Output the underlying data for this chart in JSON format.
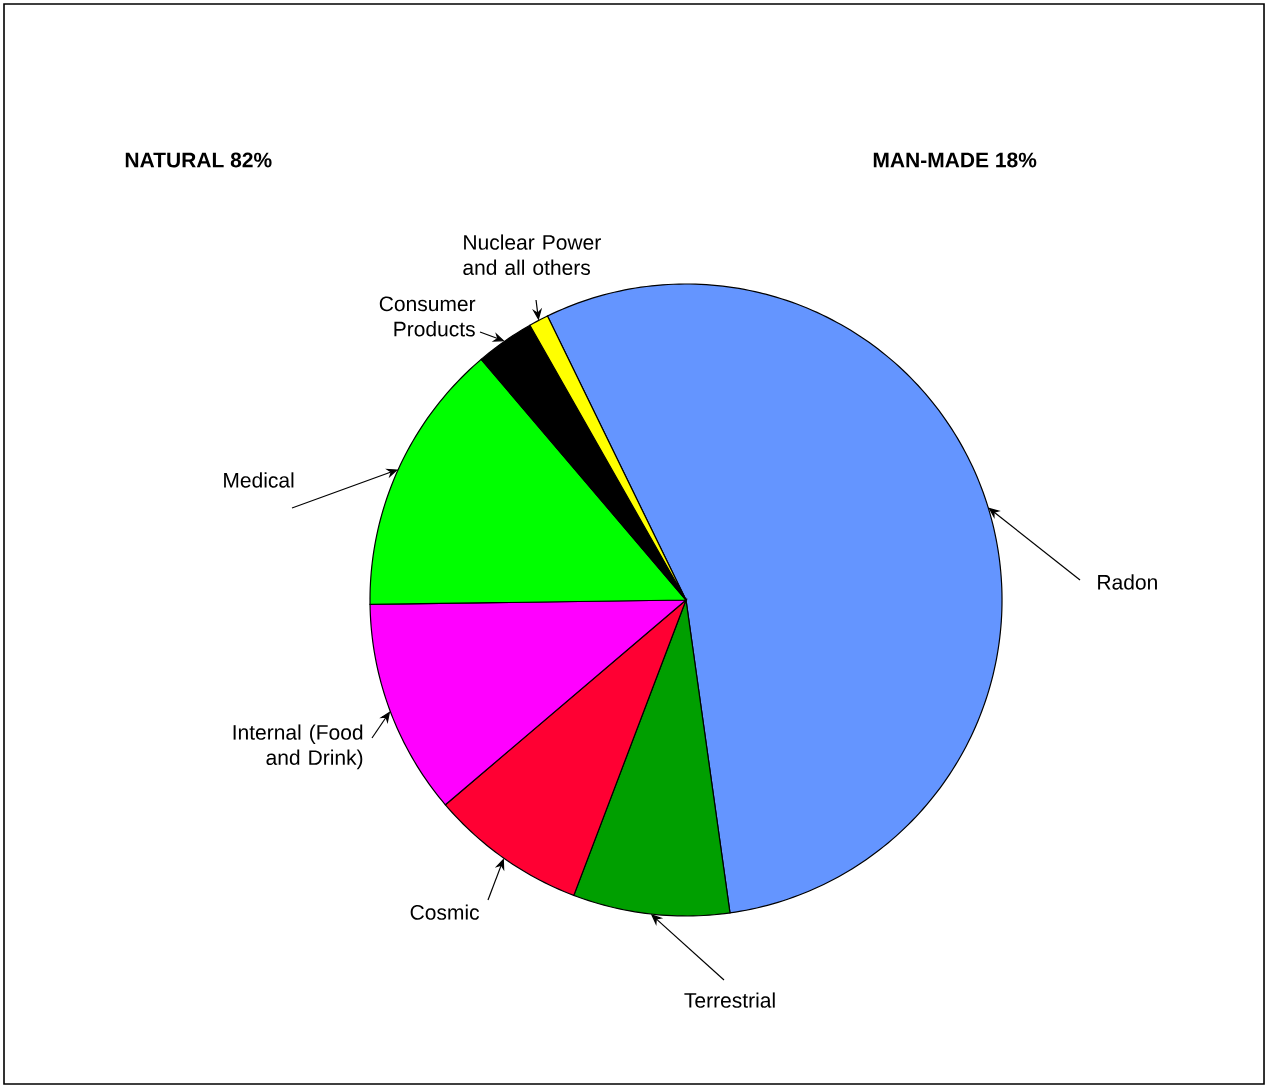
{
  "chart_data": {
    "type": "pie",
    "categories": [
      "Radon",
      "Terrestrial",
      "Cosmic",
      "Internal (Food and Drink)",
      "Medical",
      "Consumer Products",
      "Nuclear Power and all others"
    ],
    "values": [
      55,
      8,
      8,
      11,
      14,
      3,
      1
    ],
    "colors": [
      "#6495ff",
      "#009f00",
      "#ff0033",
      "#ff00ff",
      "#00ff00",
      "#000000",
      "#ffff00"
    ],
    "annotations": [
      "NATURAL 82%",
      "MAN-MADE 18%"
    ]
  }
}
